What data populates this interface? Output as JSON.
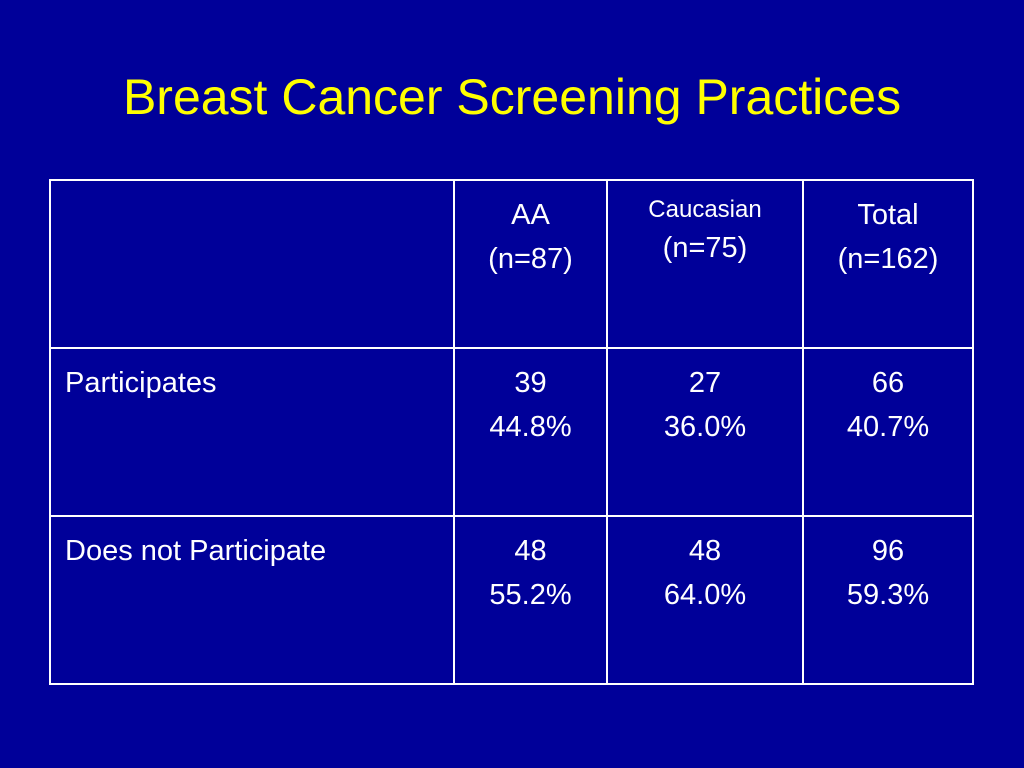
{
  "slide": {
    "title": "Breast Cancer Screening Practices",
    "colors": {
      "background": "#000099",
      "title": "#ffff00",
      "text": "#ffffff",
      "grid": "#ffffff"
    }
  },
  "table": {
    "header": {
      "corner": "",
      "aa_label": "AA",
      "aa_n": "(n=87)",
      "caucasian_label": "Caucasian",
      "caucasian_n": "(n=75)",
      "total_label": "Total",
      "total_n": "(n=162)"
    },
    "rows": [
      {
        "label": "Participates",
        "aa_count": "39",
        "aa_pct": "44.8%",
        "caucasian_count": "27",
        "caucasian_pct": "36.0%",
        "total_count": "66",
        "total_pct": "40.7%"
      },
      {
        "label": "Does not Participate",
        "aa_count": "48",
        "aa_pct": "55.2%",
        "caucasian_count": "48",
        "caucasian_pct": "64.0%",
        "total_count": "96",
        "total_pct": "59.3%"
      }
    ]
  }
}
